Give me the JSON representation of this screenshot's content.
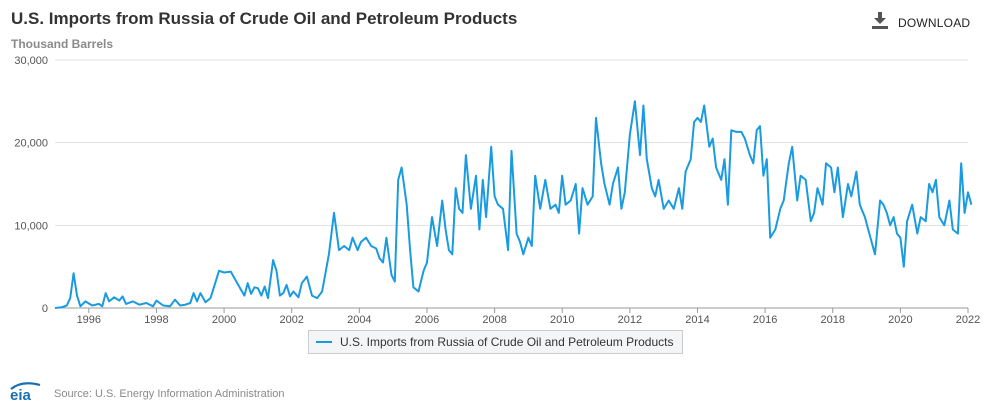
{
  "header": {
    "title": "U.S. Imports from Russia of Crude Oil and Petroleum Products",
    "subtitle": "Thousand Barrels",
    "download_label": "DOWNLOAD",
    "download_icon": "download-icon"
  },
  "legend": {
    "label": "U.S. Imports from Russia of Crude Oil and Petroleum Products"
  },
  "footer": {
    "logo_text": "eia",
    "source": "Source: U.S. Energy Information Administration"
  },
  "colors": {
    "series": "#1a9be0",
    "grid": "#e1e1e1",
    "axis": "#999999"
  },
  "chart_data": {
    "type": "line",
    "ylabel": "Thousand Barrels",
    "xlim": [
      1995,
      2022
    ],
    "ylim": [
      0,
      30000
    ],
    "x_ticks": [
      1996,
      1998,
      2000,
      2002,
      2004,
      2006,
      2008,
      2010,
      2012,
      2014,
      2016,
      2018,
      2020,
      2022
    ],
    "y_ticks": [
      0,
      10000,
      20000,
      30000
    ],
    "y_tick_labels": [
      "0",
      "10,000",
      "20,000",
      "30,000"
    ],
    "grid": true,
    "legend_position": "bottom",
    "series": [
      {
        "name": "U.S. Imports from Russia of Crude Oil and Petroleum Products",
        "points": [
          [
            1995.0,
            0
          ],
          [
            1995.2,
            100
          ],
          [
            1995.35,
            300
          ],
          [
            1995.45,
            1200
          ],
          [
            1995.55,
            4200
          ],
          [
            1995.65,
            1500
          ],
          [
            1995.75,
            200
          ],
          [
            1995.9,
            800
          ],
          [
            1996.1,
            300
          ],
          [
            1996.3,
            500
          ],
          [
            1996.4,
            200
          ],
          [
            1996.5,
            1800
          ],
          [
            1996.6,
            800
          ],
          [
            1996.75,
            1300
          ],
          [
            1996.9,
            900
          ],
          [
            1997.0,
            1400
          ],
          [
            1997.1,
            500
          ],
          [
            1997.3,
            800
          ],
          [
            1997.5,
            400
          ],
          [
            1997.7,
            600
          ],
          [
            1997.9,
            200
          ],
          [
            1998.0,
            900
          ],
          [
            1998.2,
            300
          ],
          [
            1998.4,
            200
          ],
          [
            1998.55,
            1000
          ],
          [
            1998.7,
            300
          ],
          [
            1998.85,
            400
          ],
          [
            1999.0,
            600
          ],
          [
            1999.1,
            1800
          ],
          [
            1999.2,
            800
          ],
          [
            1999.3,
            1800
          ],
          [
            1999.45,
            700
          ],
          [
            1999.6,
            1200
          ],
          [
            1999.7,
            2500
          ],
          [
            1999.85,
            4500
          ],
          [
            2000.0,
            4300
          ],
          [
            2000.2,
            4400
          ],
          [
            2000.35,
            3300
          ],
          [
            2000.5,
            2200
          ],
          [
            2000.6,
            1500
          ],
          [
            2000.7,
            3000
          ],
          [
            2000.8,
            1700
          ],
          [
            2000.9,
            2500
          ],
          [
            2001.0,
            2400
          ],
          [
            2001.1,
            1500
          ],
          [
            2001.2,
            2600
          ],
          [
            2001.3,
            1200
          ],
          [
            2001.45,
            5800
          ],
          [
            2001.55,
            4500
          ],
          [
            2001.65,
            1500
          ],
          [
            2001.75,
            1800
          ],
          [
            2001.85,
            2800
          ],
          [
            2001.95,
            1400
          ],
          [
            2002.05,
            2000
          ],
          [
            2002.2,
            1300
          ],
          [
            2002.3,
            3000
          ],
          [
            2002.45,
            3800
          ],
          [
            2002.6,
            1500
          ],
          [
            2002.75,
            1200
          ],
          [
            2002.9,
            2000
          ],
          [
            2003.1,
            6500
          ],
          [
            2003.25,
            11500
          ],
          [
            2003.4,
            7000
          ],
          [
            2003.55,
            7500
          ],
          [
            2003.7,
            7000
          ],
          [
            2003.8,
            8500
          ],
          [
            2003.95,
            7000
          ],
          [
            2004.05,
            8000
          ],
          [
            2004.2,
            8500
          ],
          [
            2004.35,
            7500
          ],
          [
            2004.5,
            7200
          ],
          [
            2004.6,
            6000
          ],
          [
            2004.7,
            5500
          ],
          [
            2004.8,
            8500
          ],
          [
            2004.95,
            4000
          ],
          [
            2005.05,
            3200
          ],
          [
            2005.15,
            15500
          ],
          [
            2005.25,
            17000
          ],
          [
            2005.4,
            12500
          ],
          [
            2005.5,
            7000
          ],
          [
            2005.6,
            2500
          ],
          [
            2005.75,
            2000
          ],
          [
            2005.9,
            4500
          ],
          [
            2006.0,
            5500
          ],
          [
            2006.15,
            11000
          ],
          [
            2006.3,
            7500
          ],
          [
            2006.45,
            13000
          ],
          [
            2006.55,
            9500
          ],
          [
            2006.65,
            7000
          ],
          [
            2006.75,
            6500
          ],
          [
            2006.85,
            14500
          ],
          [
            2006.95,
            12000
          ],
          [
            2007.05,
            11500
          ],
          [
            2007.15,
            18500
          ],
          [
            2007.3,
            12000
          ],
          [
            2007.45,
            16000
          ],
          [
            2007.55,
            9500
          ],
          [
            2007.65,
            15500
          ],
          [
            2007.75,
            11000
          ],
          [
            2007.9,
            19500
          ],
          [
            2008.0,
            13500
          ],
          [
            2008.1,
            12500
          ],
          [
            2008.25,
            12000
          ],
          [
            2008.4,
            7000
          ],
          [
            2008.5,
            19000
          ],
          [
            2008.65,
            9000
          ],
          [
            2008.75,
            8000
          ],
          [
            2008.85,
            6500
          ],
          [
            2009.0,
            8500
          ],
          [
            2009.1,
            7500
          ],
          [
            2009.2,
            16000
          ],
          [
            2009.35,
            12000
          ],
          [
            2009.5,
            15500
          ],
          [
            2009.65,
            12000
          ],
          [
            2009.8,
            12500
          ],
          [
            2009.9,
            11500
          ],
          [
            2010.0,
            16000
          ],
          [
            2010.1,
            12500
          ],
          [
            2010.25,
            13000
          ],
          [
            2010.4,
            15000
          ],
          [
            2010.5,
            9000
          ],
          [
            2010.6,
            14500
          ],
          [
            2010.75,
            12500
          ],
          [
            2010.9,
            13500
          ],
          [
            2011.0,
            23000
          ],
          [
            2011.15,
            17500
          ],
          [
            2011.25,
            15000
          ],
          [
            2011.4,
            12500
          ],
          [
            2011.5,
            15000
          ],
          [
            2011.65,
            17000
          ],
          [
            2011.75,
            12000
          ],
          [
            2011.85,
            14000
          ],
          [
            2012.0,
            21000
          ],
          [
            2012.15,
            25000
          ],
          [
            2012.3,
            18500
          ],
          [
            2012.4,
            24500
          ],
          [
            2012.5,
            18000
          ],
          [
            2012.65,
            14500
          ],
          [
            2012.75,
            13500
          ],
          [
            2012.85,
            15500
          ],
          [
            2013.0,
            12000
          ],
          [
            2013.15,
            13000
          ],
          [
            2013.3,
            12000
          ],
          [
            2013.45,
            14500
          ],
          [
            2013.55,
            12000
          ],
          [
            2013.65,
            16500
          ],
          [
            2013.8,
            18000
          ],
          [
            2013.9,
            22500
          ],
          [
            2014.0,
            23000
          ],
          [
            2014.1,
            22500
          ],
          [
            2014.2,
            24500
          ],
          [
            2014.35,
            19500
          ],
          [
            2014.45,
            20500
          ],
          [
            2014.55,
            17000
          ],
          [
            2014.7,
            15500
          ],
          [
            2014.8,
            18000
          ],
          [
            2014.9,
            12500
          ],
          [
            2015.0,
            21500
          ],
          [
            2015.15,
            21300
          ],
          [
            2015.3,
            21300
          ],
          [
            2015.4,
            20500
          ],
          [
            2015.55,
            18500
          ],
          [
            2015.65,
            17500
          ],
          [
            2015.75,
            21500
          ],
          [
            2015.85,
            22000
          ],
          [
            2015.95,
            16000
          ],
          [
            2016.05,
            18000
          ],
          [
            2016.15,
            8500
          ],
          [
            2016.3,
            9500
          ],
          [
            2016.45,
            12000
          ],
          [
            2016.55,
            13000
          ],
          [
            2016.7,
            17500
          ],
          [
            2016.8,
            19500
          ],
          [
            2016.95,
            13000
          ],
          [
            2017.05,
            16000
          ],
          [
            2017.2,
            15500
          ],
          [
            2017.35,
            10500
          ],
          [
            2017.45,
            11500
          ],
          [
            2017.55,
            14500
          ],
          [
            2017.7,
            12500
          ],
          [
            2017.8,
            17500
          ],
          [
            2017.95,
            17000
          ],
          [
            2018.05,
            14000
          ],
          [
            2018.15,
            17000
          ],
          [
            2018.3,
            11000
          ],
          [
            2018.45,
            15000
          ],
          [
            2018.55,
            13500
          ],
          [
            2018.7,
            16500
          ],
          [
            2018.8,
            12500
          ],
          [
            2018.95,
            11000
          ],
          [
            2019.05,
            9500
          ],
          [
            2019.15,
            8000
          ],
          [
            2019.25,
            6500
          ],
          [
            2019.4,
            13000
          ],
          [
            2019.5,
            12500
          ],
          [
            2019.6,
            11500
          ],
          [
            2019.7,
            10000
          ],
          [
            2019.8,
            11000
          ],
          [
            2019.9,
            9000
          ],
          [
            2020.0,
            8500
          ],
          [
            2020.1,
            5000
          ],
          [
            2020.2,
            10500
          ],
          [
            2020.35,
            12500
          ],
          [
            2020.5,
            9000
          ],
          [
            2020.6,
            11000
          ],
          [
            2020.75,
            10500
          ],
          [
            2020.85,
            15000
          ],
          [
            2020.95,
            14000
          ],
          [
            2021.05,
            15500
          ],
          [
            2021.15,
            11000
          ],
          [
            2021.3,
            10000
          ],
          [
            2021.45,
            13000
          ],
          [
            2021.55,
            9500
          ],
          [
            2021.7,
            9000
          ],
          [
            2021.8,
            17500
          ],
          [
            2021.9,
            11500
          ],
          [
            2022.0,
            14000
          ],
          [
            2022.1,
            12500
          ]
        ]
      }
    ]
  }
}
